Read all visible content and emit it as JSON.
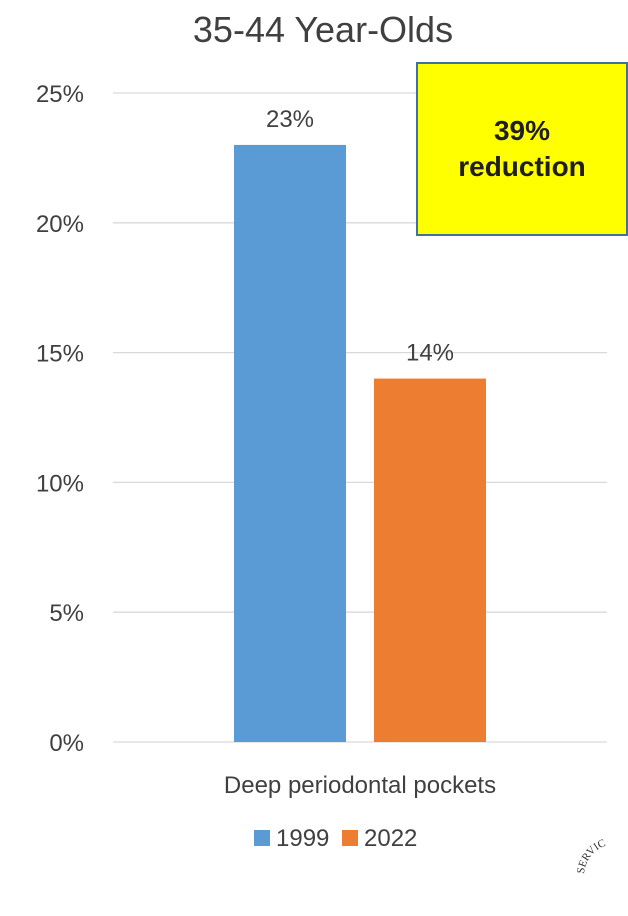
{
  "chart_data": {
    "type": "bar",
    "title": "35-44 Year-Olds",
    "categories": [
      "Deep periodontal pockets"
    ],
    "series": [
      {
        "name": "1999",
        "values": [
          23
        ],
        "color": "#5b9bd5",
        "label": "23%"
      },
      {
        "name": "2022",
        "values": [
          14
        ],
        "color": "#ed7d31",
        "label": "14%"
      }
    ],
    "ylim": [
      0,
      25
    ],
    "yticks": [
      "0%",
      "5%",
      "10%",
      "15%",
      "20%",
      "25%"
    ],
    "grid": true,
    "legend": "bottom"
  },
  "callout": {
    "line1": "39%",
    "line2": "reduction"
  },
  "seal": {
    "text": "SERVIC"
  }
}
